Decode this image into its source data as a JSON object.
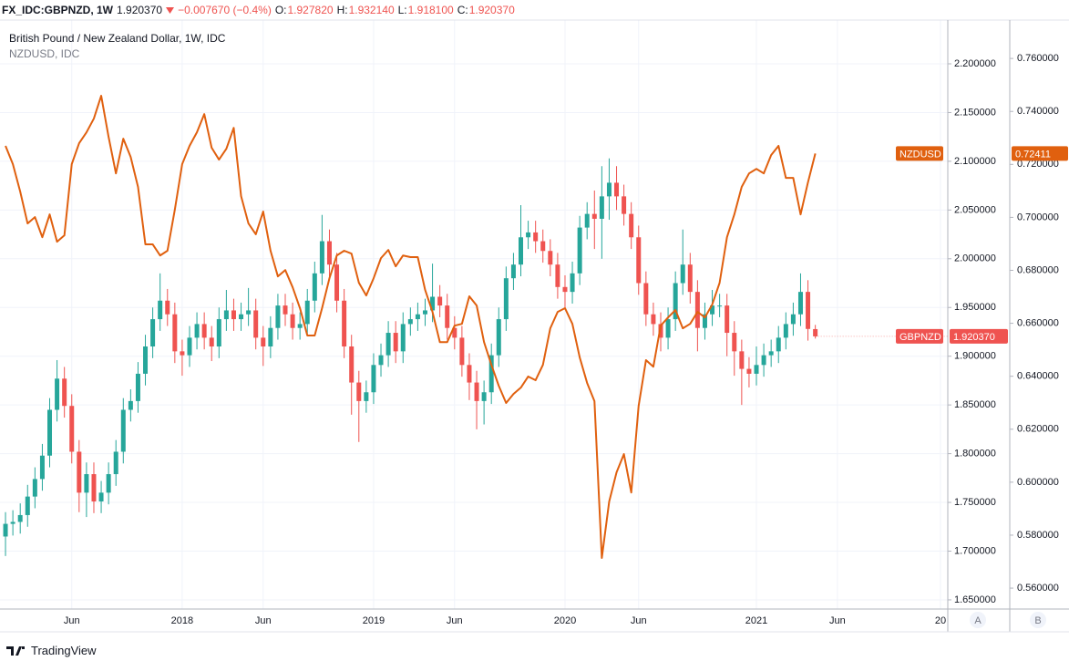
{
  "header": {
    "symbol": "FX_IDC:GBPNZD, 1W",
    "last": "1.920370",
    "change": "−0.007670 (−0.4%)",
    "fields": [
      {
        "key": "O:",
        "value": "1.927820"
      },
      {
        "key": "H:",
        "value": "1.932140"
      },
      {
        "key": "L:",
        "value": "1.918100"
      },
      {
        "key": "C:",
        "value": "1.920370"
      }
    ]
  },
  "footer": {
    "brand": "TradingView"
  },
  "chart_data": {
    "type": "candlestick",
    "legend": [
      "British Pound / New Zealand Dollar, 1W, IDC",
      "NZDUSD, IDC"
    ],
    "scale_buttons": [
      "A",
      "B"
    ],
    "grid": true,
    "categories": [
      null,
      null,
      null,
      null,
      null,
      null,
      null,
      null,
      null,
      "Jun",
      null,
      null,
      null,
      null,
      null,
      null,
      null,
      null,
      null,
      null,
      null,
      null,
      null,
      null,
      "2018",
      null,
      null,
      null,
      null,
      null,
      null,
      null,
      null,
      null,
      null,
      "Jun",
      null,
      null,
      null,
      null,
      null,
      null,
      null,
      null,
      null,
      null,
      null,
      null,
      null,
      null,
      "2019",
      null,
      null,
      null,
      null,
      null,
      null,
      null,
      null,
      null,
      null,
      "Jun",
      null,
      null,
      null,
      null,
      null,
      null,
      null,
      null,
      null,
      null,
      null,
      null,
      null,
      null,
      "2020",
      null,
      null,
      null,
      null,
      null,
      null,
      null,
      null,
      null,
      "Jun",
      null,
      null,
      null,
      null,
      null,
      null,
      null,
      null,
      null,
      null,
      null,
      null,
      null,
      null,
      null,
      "2021",
      null,
      null,
      null,
      null,
      null,
      null,
      null,
      null,
      null,
      null,
      "Jun",
      null,
      null,
      null,
      null,
      null,
      null,
      null,
      null,
      null,
      null,
      null,
      null,
      null,
      "20"
    ],
    "ylim": [
      1.6406,
      2.2449
    ],
    "yticks": [
      {
        "value": 1.65,
        "label": "1.650000"
      },
      {
        "value": 1.7,
        "label": "1.700000"
      },
      {
        "value": 1.75,
        "label": "1.750000"
      },
      {
        "value": 1.8,
        "label": "1.800000"
      },
      {
        "value": 1.85,
        "label": "1.850000"
      },
      {
        "value": 1.9,
        "label": "1.900000"
      },
      {
        "value": 1.95,
        "label": "1.950000"
      },
      {
        "value": 2.0,
        "label": "2.000000"
      },
      {
        "value": 2.05,
        "label": "2.050000"
      },
      {
        "value": 2.1,
        "label": "2.100000"
      },
      {
        "value": 2.15,
        "label": "2.150000"
      },
      {
        "value": 2.2,
        "label": "2.200000"
      }
    ],
    "y2lim": [
      0.5521,
      0.7745
    ],
    "y2ticks": [
      {
        "value": 0.56,
        "label": "0.560000"
      },
      {
        "value": 0.58,
        "label": "0.580000"
      },
      {
        "value": 0.6,
        "label": "0.600000"
      },
      {
        "value": 0.62,
        "label": "0.620000"
      },
      {
        "value": 0.64,
        "label": "0.640000"
      },
      {
        "value": 0.66,
        "label": "0.660000"
      },
      {
        "value": 0.68,
        "label": "0.680000"
      },
      {
        "value": 0.7,
        "label": "0.700000"
      },
      {
        "value": 0.72,
        "label": "0.720000"
      },
      {
        "value": 0.74,
        "label": "0.740000"
      },
      {
        "value": 0.76,
        "label": "0.760000"
      }
    ],
    "series": [
      {
        "name": "GBPNZD",
        "type": "candlestick",
        "up_color": "#26a69a",
        "down_color": "#ef5350",
        "last_value_label": "1.920370",
        "open": [
          1.715,
          1.728,
          1.73,
          1.737,
          1.756,
          1.774,
          1.798,
          1.845,
          1.877,
          1.849,
          1.802,
          1.76,
          1.779,
          1.751,
          1.76,
          1.779,
          1.802,
          1.845,
          1.854,
          1.882,
          1.91,
          1.938,
          1.957,
          1.943,
          1.905,
          1.901,
          1.919,
          1.933,
          1.919,
          1.91,
          1.938,
          1.947,
          1.938,
          1.943,
          1.947,
          1.919,
          1.91,
          1.929,
          1.952,
          1.943,
          1.929,
          1.933,
          1.957,
          1.985,
          2.018,
          1.994,
          1.957,
          1.91,
          1.873,
          1.854,
          1.863,
          1.891,
          1.901,
          1.924,
          1.905,
          1.933,
          1.938,
          1.943,
          1.947,
          1.961,
          1.952,
          1.929,
          1.919,
          1.891,
          1.873,
          1.854,
          1.863,
          1.901,
          1.938,
          1.98,
          1.994,
          2.022,
          2.027,
          2.018,
          2.008,
          1.994,
          1.971,
          1.966,
          1.985,
          2.032,
          2.046,
          2.041,
          2.064,
          2.078,
          2.064,
          2.046,
          2.022,
          1.975,
          1.943,
          1.933,
          1.919,
          1.938,
          1.975,
          1.994,
          1.966,
          1.929,
          1.943,
          1.952,
          1.952,
          1.924,
          1.905,
          1.887,
          1.882,
          1.891,
          1.901,
          1.905,
          1.919,
          1.933,
          1.943,
          1.966,
          1.92782,
          null,
          null,
          null,
          null,
          null,
          null,
          null,
          null,
          null,
          null,
          null,
          null,
          null,
          null,
          null,
          null,
          null
        ],
        "high": [
          1.74,
          1.742,
          1.749,
          1.768,
          1.786,
          1.81,
          1.857,
          1.896,
          1.889,
          1.861,
          1.814,
          1.791,
          1.791,
          1.772,
          1.791,
          1.814,
          1.857,
          1.866,
          1.894,
          1.922,
          1.95,
          1.985,
          1.969,
          1.955,
          1.917,
          1.931,
          1.945,
          1.945,
          1.931,
          1.95,
          1.968,
          1.959,
          1.955,
          1.97,
          1.959,
          1.931,
          1.941,
          1.964,
          1.964,
          1.955,
          1.945,
          1.969,
          1.997,
          2.045,
          2.03,
          2.006,
          1.969,
          1.922,
          1.885,
          1.875,
          1.903,
          1.913,
          1.936,
          1.936,
          1.945,
          1.95,
          1.955,
          1.959,
          1.995,
          1.973,
          1.964,
          1.941,
          1.931,
          1.903,
          1.885,
          1.875,
          1.913,
          1.95,
          1.992,
          2.006,
          2.055,
          2.039,
          2.039,
          2.03,
          2.02,
          2.006,
          1.983,
          1.997,
          2.044,
          2.058,
          2.07,
          2.095,
          2.103,
          2.095,
          2.076,
          2.058,
          2.034,
          1.987,
          1.955,
          1.945,
          1.95,
          1.987,
          2.03,
          2.006,
          1.978,
          1.955,
          1.968,
          1.964,
          1.964,
          1.936,
          1.917,
          1.899,
          1.91,
          1.913,
          1.917,
          1.931,
          1.945,
          1.955,
          1.985,
          1.978,
          1.93214,
          null,
          null,
          null,
          null,
          null,
          null,
          null,
          null,
          null,
          null,
          null,
          null,
          null,
          null,
          null,
          null,
          null
        ],
        "low": [
          1.695,
          1.716,
          1.718,
          1.725,
          1.744,
          1.762,
          1.786,
          1.833,
          1.837,
          1.79,
          1.74,
          1.735,
          1.739,
          1.739,
          1.748,
          1.767,
          1.79,
          1.833,
          1.842,
          1.87,
          1.898,
          1.926,
          1.931,
          1.893,
          1.88,
          1.889,
          1.907,
          1.907,
          1.895,
          1.898,
          1.926,
          1.926,
          1.926,
          1.931,
          1.907,
          1.89,
          1.898,
          1.917,
          1.931,
          1.917,
          1.917,
          1.921,
          1.945,
          1.973,
          1.982,
          1.945,
          1.898,
          1.84,
          1.812,
          1.842,
          1.851,
          1.879,
          1.889,
          1.893,
          1.893,
          1.921,
          1.926,
          1.931,
          1.935,
          1.94,
          1.917,
          1.907,
          1.879,
          1.855,
          1.825,
          1.83,
          1.851,
          1.889,
          1.926,
          1.968,
          1.982,
          2.01,
          2.006,
          1.996,
          1.982,
          1.959,
          1.95,
          1.954,
          1.973,
          2.02,
          2.01,
          2.0,
          2.04,
          2.05,
          2.034,
          2.01,
          1.963,
          1.931,
          1.921,
          1.905,
          1.907,
          1.926,
          1.963,
          1.954,
          1.905,
          1.917,
          1.931,
          1.94,
          1.9,
          1.88,
          1.85,
          1.868,
          1.87,
          1.879,
          1.889,
          1.893,
          1.907,
          1.921,
          1.931,
          1.916,
          1.9181,
          null,
          null,
          null,
          null,
          null,
          null,
          null,
          null,
          null,
          null,
          null,
          null,
          null,
          null,
          null,
          null,
          null
        ],
        "close": [
          1.728,
          1.73,
          1.737,
          1.756,
          1.774,
          1.798,
          1.845,
          1.877,
          1.849,
          1.802,
          1.76,
          1.779,
          1.751,
          1.76,
          1.779,
          1.802,
          1.845,
          1.854,
          1.882,
          1.91,
          1.938,
          1.957,
          1.943,
          1.905,
          1.901,
          1.919,
          1.933,
          1.919,
          1.91,
          1.938,
          1.947,
          1.938,
          1.943,
          1.947,
          1.919,
          1.91,
          1.929,
          1.952,
          1.943,
          1.929,
          1.933,
          1.957,
          1.985,
          2.018,
          1.994,
          1.957,
          1.91,
          1.873,
          1.854,
          1.863,
          1.891,
          1.901,
          1.924,
          1.905,
          1.933,
          1.938,
          1.943,
          1.947,
          1.961,
          1.952,
          1.929,
          1.919,
          1.891,
          1.873,
          1.854,
          1.863,
          1.901,
          1.938,
          1.98,
          1.994,
          2.022,
          2.027,
          2.018,
          2.008,
          1.994,
          1.971,
          1.966,
          1.985,
          2.032,
          2.046,
          2.041,
          2.064,
          2.078,
          2.064,
          2.046,
          2.022,
          1.975,
          1.943,
          1.933,
          1.919,
          1.938,
          1.975,
          1.994,
          1.966,
          1.929,
          1.943,
          1.952,
          1.952,
          1.924,
          1.905,
          1.887,
          1.882,
          1.891,
          1.901,
          1.905,
          1.919,
          1.933,
          1.943,
          1.966,
          1.928,
          1.92037,
          null,
          null,
          null,
          null,
          null,
          null,
          null,
          null,
          null,
          null,
          null,
          null,
          null,
          null,
          null,
          null,
          null
        ]
      },
      {
        "name": "NZDUSD",
        "type": "line",
        "axis": "y2",
        "color": "#e0600f",
        "last_value_label": "0.72411",
        "values": [
          0.727,
          0.7201,
          0.7097,
          0.6977,
          0.7001,
          0.6925,
          0.7011,
          0.6908,
          0.6932,
          0.7201,
          0.728,
          0.7321,
          0.7373,
          0.7459,
          0.7304,
          0.7166,
          0.7297,
          0.7228,
          0.7115,
          0.6898,
          0.6898,
          0.6856,
          0.6874,
          0.7029,
          0.7201,
          0.727,
          0.7321,
          0.739,
          0.7263,
          0.7218,
          0.7259,
          0.7338,
          0.708,
          0.6977,
          0.6936,
          0.7022,
          0.6874,
          0.6777,
          0.6801,
          0.6736,
          0.6657,
          0.6554,
          0.6554,
          0.6657,
          0.677,
          0.6856,
          0.6874,
          0.6863,
          0.6753,
          0.6705,
          0.677,
          0.6846,
          0.6877,
          0.6815,
          0.6856,
          0.685,
          0.685,
          0.6726,
          0.6643,
          0.6529,
          0.6529,
          0.6591,
          0.6598,
          0.6702,
          0.6667,
          0.6529,
          0.6443,
          0.6364,
          0.6299,
          0.6333,
          0.6357,
          0.6399,
          0.6385,
          0.6443,
          0.6581,
          0.6643,
          0.6657,
          0.6598,
          0.6471,
          0.6375,
          0.6306,
          0.5714,
          0.5927,
          0.6037,
          0.6106,
          0.5961,
          0.6288,
          0.6461,
          0.6436,
          0.6591,
          0.6622,
          0.665,
          0.6581,
          0.6598,
          0.6643,
          0.6622,
          0.6671,
          0.6753,
          0.6925,
          0.7011,
          0.7115,
          0.7166,
          0.7183,
          0.7166,
          0.7235,
          0.727,
          0.7149,
          0.7149,
          0.7011,
          0.7132,
          0.72411,
          null,
          null,
          null,
          null,
          null,
          null,
          null,
          null,
          null,
          null,
          null,
          null,
          null,
          null,
          null,
          null,
          null
        ]
      }
    ]
  }
}
